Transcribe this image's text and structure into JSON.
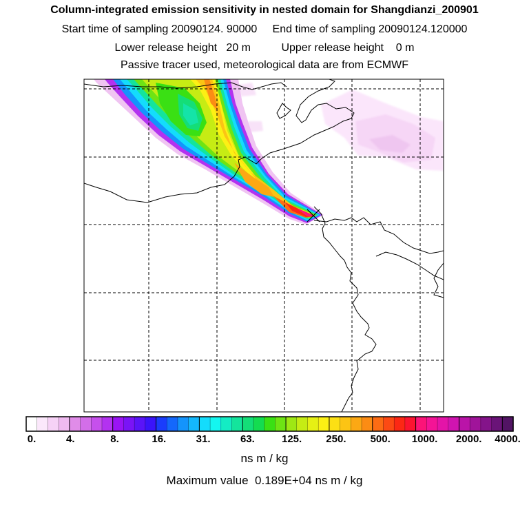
{
  "header": {
    "title": "Column-integrated emission sensitivity in nested domain for Shangdianzi_200901",
    "sampling": "Start time of sampling 20090124. 90000     End time of sampling 20090124.120000",
    "release": "Lower release height   20 m          Upper release height    0 m",
    "tracer": "Passive tracer used, meteorological data are from ECMWF"
  },
  "map": {
    "station": "Shangdianzi",
    "marker": "station-x-marker",
    "colors": {
      "coastline": "#000000",
      "gridlines": "#000000",
      "frame": "#000000"
    }
  },
  "colorbar": {
    "tick_labels": [
      "0.",
      "4.",
      "8.",
      "16.",
      "31.",
      "63.",
      "125.",
      "250.",
      "500.",
      "1000.",
      "2000.",
      "4000."
    ],
    "colors": [
      "#ffffff",
      "#fbe8fb",
      "#f6d2f6",
      "#efbaf0",
      "#e08ce8",
      "#d36ee8",
      "#c650ec",
      "#b332f0",
      "#9a14f4",
      "#7a14f6",
      "#5a14f8",
      "#3a14fa",
      "#1a3cfc",
      "#1468fc",
      "#1494fc",
      "#14b8fc",
      "#14dcfc",
      "#14f6f0",
      "#14ecc4",
      "#14e49c",
      "#14de78",
      "#14dc50",
      "#3ae014",
      "#6ee414",
      "#9ee814",
      "#c6ec14",
      "#e6f014",
      "#fcf014",
      "#fce014",
      "#fcc414",
      "#fca814",
      "#fc8c14",
      "#fc6c14",
      "#fc4a14",
      "#fc2814",
      "#fc1430",
      "#fc1478",
      "#f41496",
      "#e414a8",
      "#d014b0",
      "#ba14a8",
      "#a0149a",
      "#84148a",
      "#6a1478",
      "#521464"
    ],
    "units": "ns m / kg"
  },
  "footer": {
    "max_value": "Maximum value  0.189E+04 ns m / kg"
  }
}
